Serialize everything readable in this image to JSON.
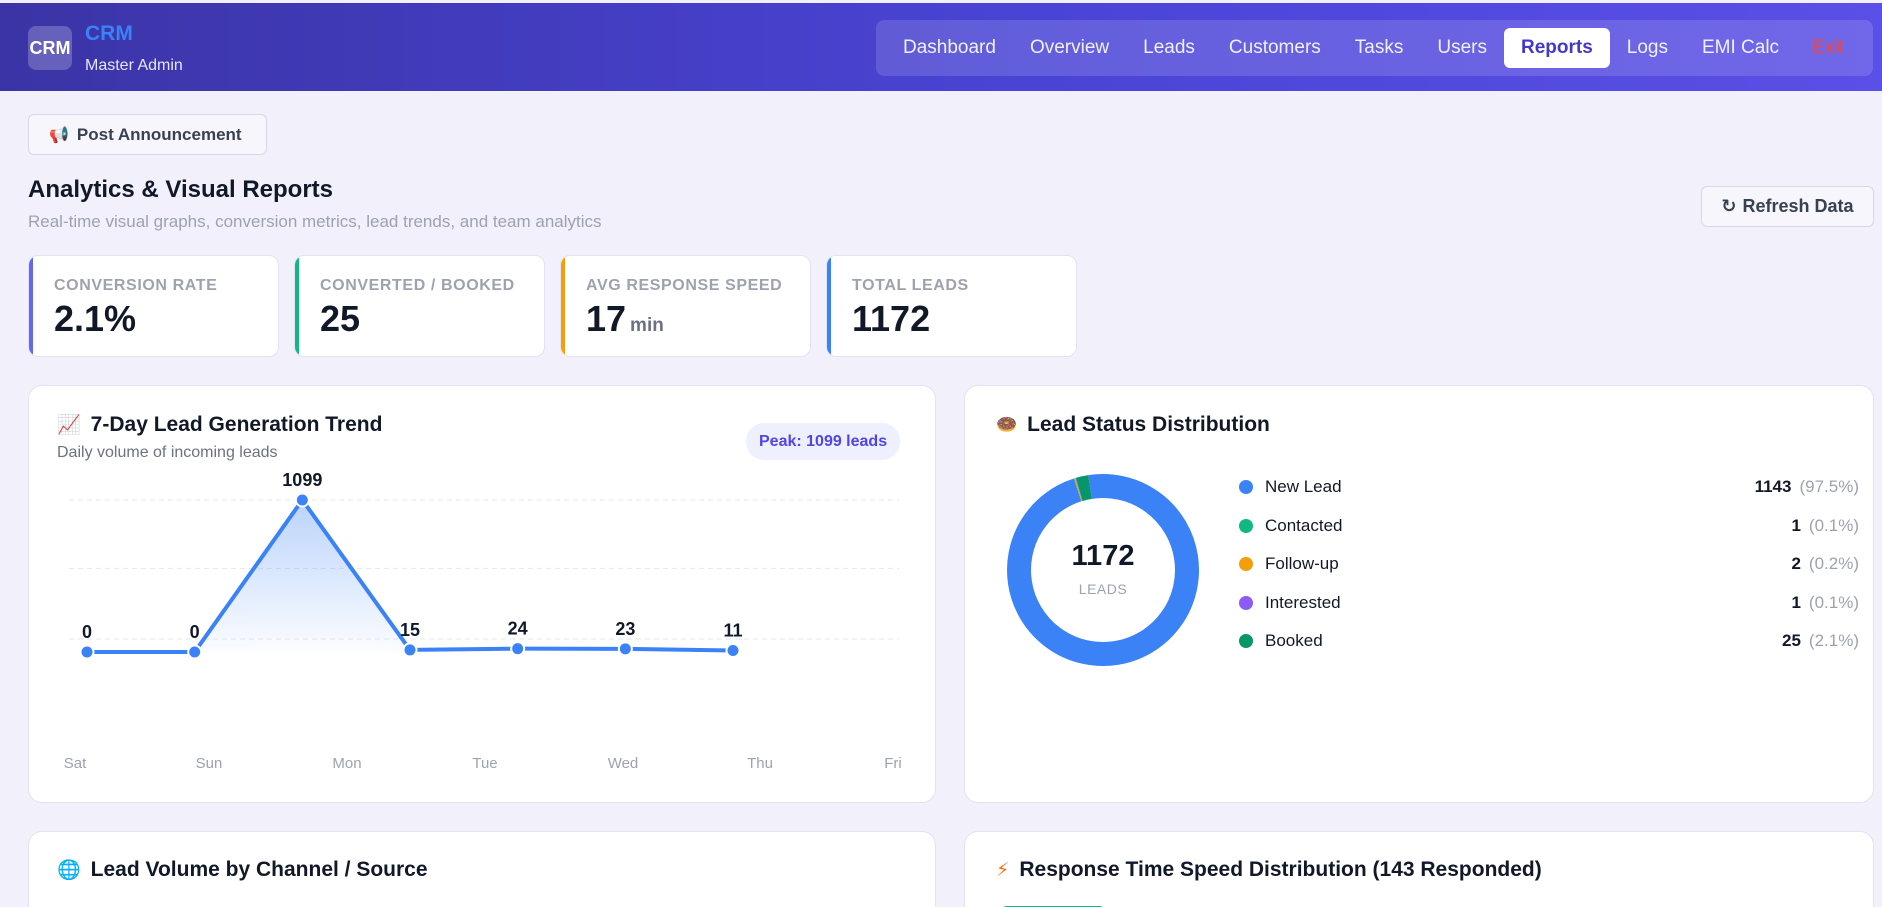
{
  "header": {
    "logo_text": "CRM",
    "app_name": "CRM",
    "role": "Master Admin",
    "nav": [
      "Dashboard",
      "Overview",
      "Leads",
      "Customers",
      "Tasks",
      "Users",
      "Reports",
      "Logs",
      "EMI Calc",
      "Exit"
    ],
    "active_nav": "Reports"
  },
  "announcement": {
    "icon": "megaphone-icon",
    "label": "Post Announcement"
  },
  "page": {
    "title": "Analytics & Visual Reports",
    "subtitle": "Real-time visual graphs, conversion metrics, lead trends, and team analytics",
    "refresh_icon": "refresh-icon",
    "refresh_label": "Refresh Data"
  },
  "stats": [
    {
      "label": "CONVERSION RATE",
      "value": "2.1%",
      "unit": "",
      "color": "#6366f1"
    },
    {
      "label": "CONVERTED / BOOKED",
      "value": "25",
      "unit": "",
      "color": "#10b981"
    },
    {
      "label": "AVG RESPONSE SPEED",
      "value": "17",
      "unit": "min",
      "color": "#f59e0b"
    },
    {
      "label": "TOTAL LEADS",
      "value": "1172",
      "unit": "",
      "color": "#3b82f6"
    }
  ],
  "trend_panel": {
    "icon": "chart-increasing-icon",
    "title": "7-Day Lead Generation Trend",
    "subtitle": "Daily volume of incoming leads",
    "peak_label": "Peak: 1099 leads"
  },
  "status_panel": {
    "icon": "donut-icon",
    "title": "Lead Status Distribution",
    "center_value": "1172",
    "center_label": "LEADS",
    "items": [
      {
        "label": "New Lead",
        "count": "1143",
        "pct": "(97.5%)",
        "color": "#3b82f6"
      },
      {
        "label": "Contacted",
        "count": "1",
        "pct": "(0.1%)",
        "color": "#10b981"
      },
      {
        "label": "Follow-up",
        "count": "2",
        "pct": "(0.2%)",
        "color": "#f59e0b"
      },
      {
        "label": "Interested",
        "count": "1",
        "pct": "(0.1%)",
        "color": "#8b5cf6"
      },
      {
        "label": "Booked",
        "count": "25",
        "pct": "(2.1%)",
        "color": "#059669"
      }
    ]
  },
  "channel_panel": {
    "icon": "globe-icon",
    "title": "Lead Volume by Channel / Source"
  },
  "response_panel": {
    "icon": "lightning-icon",
    "title": "Response Time Speed Distribution (143 Responded)"
  },
  "chart_data": [
    {
      "type": "area",
      "categories": [
        "Sat",
        "Sun",
        "Mon",
        "Tue",
        "Wed",
        "Thu",
        "Fri"
      ],
      "values": [
        0,
        0,
        1099,
        15,
        24,
        23,
        11
      ],
      "title": "7-Day Lead Generation Trend",
      "color": "#3b82f6",
      "grid": true
    },
    {
      "type": "pie",
      "categories": [
        "New Lead",
        "Contacted",
        "Follow-up",
        "Interested",
        "Booked"
      ],
      "values": [
        1143,
        1,
        2,
        1,
        25
      ],
      "title": "Lead Status Distribution",
      "colors": [
        "#3b82f6",
        "#10b981",
        "#f59e0b",
        "#8b5cf6",
        "#059669"
      ]
    }
  ]
}
